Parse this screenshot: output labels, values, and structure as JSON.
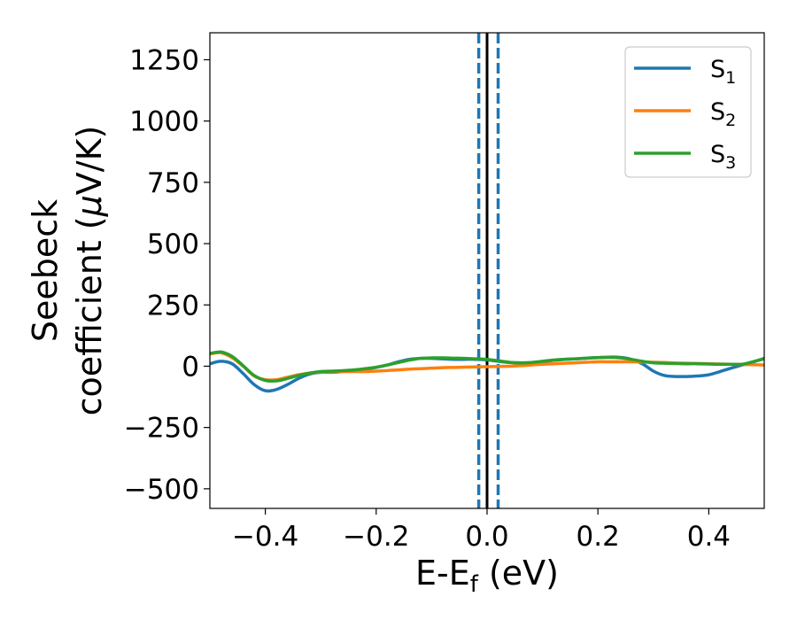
{
  "chart_data": {
    "type": "line",
    "xlabel": {
      "main": "E-E",
      "sub": "f",
      "unit": " (eV)"
    },
    "ylabel": {
      "line1": "Seebeck",
      "line2_prefix": "coefficient  (",
      "line2_mu": "μ",
      "line2_suffix": "V/K)"
    },
    "xlim": [
      -0.5,
      0.5
    ],
    "ylim": [
      -580,
      1360
    ],
    "xticks": [
      -0.4,
      -0.2,
      0.0,
      0.2,
      0.4
    ],
    "xtick_labels": [
      "−0.4",
      "−0.2",
      "0.0",
      "0.2",
      "0.4"
    ],
    "yticks": [
      -500,
      -250,
      0,
      250,
      500,
      750,
      1000,
      1250
    ],
    "ytick_labels": [
      "−500",
      "−250",
      "0",
      "250",
      "500",
      "750",
      "1000",
      "1250"
    ],
    "grid": false,
    "legend_position": "top-right",
    "vlines": [
      {
        "x": 0.0,
        "style": "solid",
        "color": "#000000"
      },
      {
        "x": -0.015,
        "style": "dashed",
        "color": "#1f77b4"
      },
      {
        "x": 0.02,
        "style": "dashed",
        "color": "#1f77b4"
      }
    ],
    "series": [
      {
        "name": "S",
        "sub": "1",
        "color": "#1f77b4",
        "x": [
          -0.5,
          -0.48,
          -0.46,
          -0.44,
          -0.42,
          -0.4,
          -0.38,
          -0.36,
          -0.34,
          -0.32,
          -0.3,
          -0.28,
          -0.26,
          -0.24,
          -0.22,
          -0.2,
          -0.18,
          -0.16,
          -0.14,
          -0.12,
          -0.1,
          -0.08,
          -0.06,
          -0.04,
          -0.02,
          0.0,
          0.02,
          0.04,
          0.06,
          0.08,
          0.1,
          0.12,
          0.14,
          0.16,
          0.18,
          0.2,
          0.22,
          0.24,
          0.26,
          0.28,
          0.3,
          0.32,
          0.34,
          0.36,
          0.38,
          0.4,
          0.42,
          0.44,
          0.46,
          0.48,
          0.5
        ],
        "y": [
          10,
          20,
          10,
          -30,
          -75,
          -100,
          -95,
          -75,
          -50,
          -32,
          -25,
          -25,
          -22,
          -18,
          -12,
          -5,
          5,
          18,
          28,
          32,
          32,
          30,
          28,
          28,
          28,
          26,
          20,
          15,
          14,
          14,
          18,
          24,
          28,
          30,
          33,
          35,
          37,
          36,
          28,
          10,
          -20,
          -38,
          -42,
          -42,
          -40,
          -35,
          -22,
          -8,
          5,
          18,
          30
        ]
      },
      {
        "name": "S",
        "sub": "2",
        "color": "#ff7f0e",
        "x": [
          -0.5,
          -0.48,
          -0.46,
          -0.44,
          -0.42,
          -0.4,
          -0.38,
          -0.36,
          -0.34,
          -0.32,
          -0.3,
          -0.28,
          -0.26,
          -0.24,
          -0.22,
          -0.2,
          -0.18,
          -0.16,
          -0.14,
          -0.12,
          -0.1,
          -0.08,
          -0.06,
          -0.04,
          -0.02,
          0.0,
          0.02,
          0.04,
          0.06,
          0.08,
          0.1,
          0.12,
          0.14,
          0.16,
          0.18,
          0.2,
          0.22,
          0.24,
          0.26,
          0.28,
          0.3,
          0.32,
          0.34,
          0.36,
          0.38,
          0.4,
          0.42,
          0.44,
          0.46,
          0.48,
          0.5
        ],
        "y": [
          50,
          55,
          35,
          0,
          -40,
          -55,
          -55,
          -45,
          -35,
          -28,
          -24,
          -23,
          -22,
          -22,
          -22,
          -20,
          -18,
          -15,
          -12,
          -10,
          -8,
          -6,
          -5,
          -4,
          -3,
          -2,
          -1,
          0,
          2,
          5,
          8,
          10,
          12,
          14,
          16,
          18,
          18,
          18,
          18,
          17,
          16,
          15,
          13,
          12,
          11,
          10,
          9,
          8,
          7,
          6,
          5
        ]
      },
      {
        "name": "S",
        "sub": "3",
        "color": "#2ca02c",
        "x": [
          -0.5,
          -0.48,
          -0.46,
          -0.44,
          -0.42,
          -0.4,
          -0.38,
          -0.36,
          -0.34,
          -0.32,
          -0.3,
          -0.28,
          -0.26,
          -0.24,
          -0.22,
          -0.2,
          -0.18,
          -0.16,
          -0.14,
          -0.12,
          -0.1,
          -0.08,
          -0.06,
          -0.04,
          -0.02,
          0.0,
          0.02,
          0.04,
          0.06,
          0.08,
          0.1,
          0.12,
          0.14,
          0.16,
          0.18,
          0.2,
          0.22,
          0.24,
          0.26,
          0.28,
          0.3,
          0.32,
          0.34,
          0.36,
          0.38,
          0.4,
          0.42,
          0.44,
          0.46,
          0.48,
          0.5
        ],
        "y": [
          52,
          58,
          40,
          2,
          -38,
          -58,
          -60,
          -50,
          -38,
          -28,
          -22,
          -20,
          -18,
          -15,
          -10,
          -4,
          5,
          15,
          25,
          32,
          34,
          34,
          33,
          32,
          30,
          28,
          22,
          16,
          13,
          15,
          20,
          25,
          28,
          30,
          33,
          35,
          36,
          34,
          28,
          20,
          14,
          12,
          11,
          10,
          10,
          9,
          8,
          8,
          8,
          18,
          32
        ]
      }
    ]
  }
}
